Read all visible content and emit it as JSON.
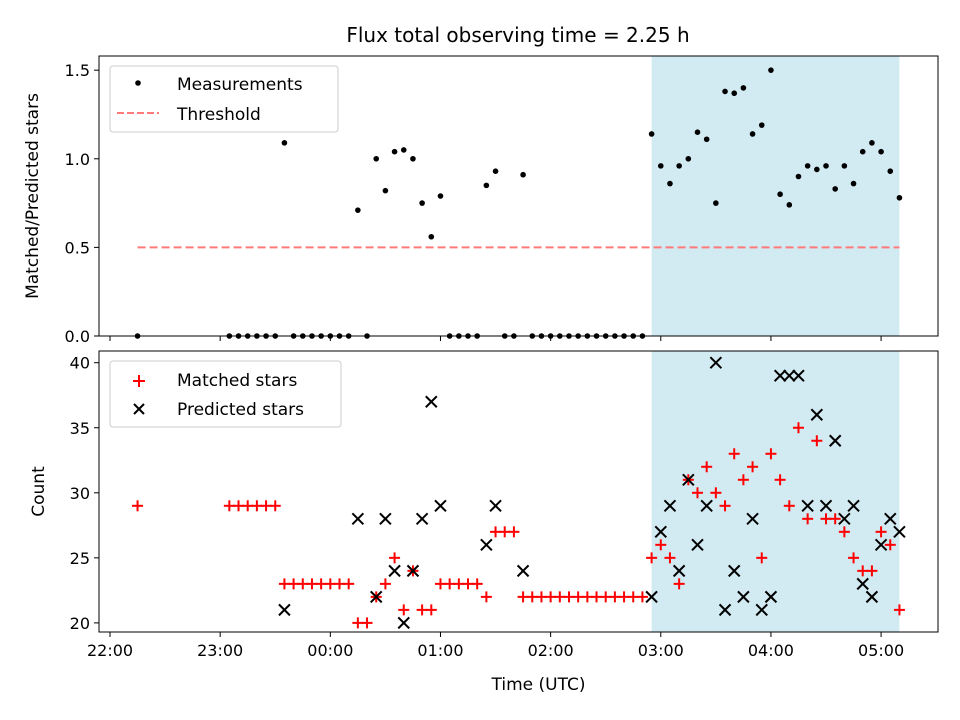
{
  "chart_data": [
    {
      "type": "scatter",
      "title": "Flux total observing time = 2.25 h",
      "xlabel": "",
      "ylabel": "Matched/Predicted stars",
      "ylim": [
        0,
        1.58
      ],
      "yticks": [
        0.0,
        0.5,
        1.0,
        1.5
      ],
      "ytick_labels": [
        "0.0",
        "0.5",
        "1.0",
        "1.5"
      ],
      "grid": false,
      "legend": "upper-left",
      "shaded_region": {
        "x": [
          "02:55",
          "05:10"
        ],
        "color": "#add8e6"
      },
      "series": [
        {
          "name": "Measurements",
          "color": "#000000",
          "marker": "dot",
          "points": [
            [
              "22:15",
              0
            ],
            [
              "23:05",
              0
            ],
            [
              "23:10",
              0
            ],
            [
              "23:15",
              0
            ],
            [
              "23:20",
              0
            ],
            [
              "23:25",
              0
            ],
            [
              "23:30",
              0
            ],
            [
              "23:35",
              1.09
            ],
            [
              "23:40",
              0
            ],
            [
              "23:45",
              0
            ],
            [
              "23:50",
              0
            ],
            [
              "23:55",
              0
            ],
            [
              "00:00",
              0
            ],
            [
              "00:05",
              0
            ],
            [
              "00:10",
              0
            ],
            [
              "00:15",
              0.71
            ],
            [
              "00:20",
              0
            ],
            [
              "00:25",
              1.0
            ],
            [
              "00:30",
              0.82
            ],
            [
              "00:35",
              1.04
            ],
            [
              "00:40",
              1.05
            ],
            [
              "00:45",
              1.0
            ],
            [
              "00:50",
              0.75
            ],
            [
              "00:55",
              0.56
            ],
            [
              "01:00",
              0.79
            ],
            [
              "01:05",
              0
            ],
            [
              "01:10",
              0
            ],
            [
              "01:15",
              0
            ],
            [
              "01:20",
              0
            ],
            [
              "01:25",
              0.85
            ],
            [
              "01:30",
              0.93
            ],
            [
              "01:35",
              0
            ],
            [
              "01:40",
              0
            ],
            [
              "01:45",
              0.91
            ],
            [
              "01:50",
              0
            ],
            [
              "01:55",
              0
            ],
            [
              "02:00",
              0
            ],
            [
              "02:05",
              0
            ],
            [
              "02:10",
              0
            ],
            [
              "02:15",
              0
            ],
            [
              "02:20",
              0
            ],
            [
              "02:25",
              0
            ],
            [
              "02:30",
              0
            ],
            [
              "02:35",
              0
            ],
            [
              "02:40",
              0
            ],
            [
              "02:45",
              0
            ],
            [
              "02:50",
              0
            ],
            [
              "02:55",
              1.14
            ],
            [
              "03:00",
              0.96
            ],
            [
              "03:05",
              0.86
            ],
            [
              "03:10",
              0.96
            ],
            [
              "03:15",
              1.0
            ],
            [
              "03:20",
              1.15
            ],
            [
              "03:25",
              1.11
            ],
            [
              "03:30",
              0.75
            ],
            [
              "03:35",
              1.38
            ],
            [
              "03:40",
              1.37
            ],
            [
              "03:45",
              1.4
            ],
            [
              "03:50",
              1.14
            ],
            [
              "03:55",
              1.19
            ],
            [
              "04:00",
              1.5
            ],
            [
              "04:05",
              0.8
            ],
            [
              "04:10",
              0.74
            ],
            [
              "04:15",
              0.9
            ],
            [
              "04:20",
              0.96
            ],
            [
              "04:25",
              0.94
            ],
            [
              "04:30",
              0.96
            ],
            [
              "04:35",
              0.83
            ],
            [
              "04:40",
              0.96
            ],
            [
              "04:45",
              0.86
            ],
            [
              "04:50",
              1.04
            ],
            [
              "04:55",
              1.09
            ],
            [
              "05:00",
              1.04
            ],
            [
              "05:05",
              0.93
            ],
            [
              "05:10",
              0.78
            ]
          ]
        },
        {
          "name": "Threshold",
          "color": "#ff7a7a",
          "marker": "dashed-line",
          "points": [
            [
              "22:15",
              0.5
            ],
            [
              "05:10",
              0.5
            ]
          ]
        }
      ]
    },
    {
      "type": "scatter",
      "title": "",
      "xlabel": "Time (UTC)",
      "ylabel": "Count",
      "ylim": [
        19.3,
        40.9
      ],
      "yticks": [
        20,
        25,
        30,
        35,
        40
      ],
      "ytick_labels": [
        "20",
        "25",
        "30",
        "35",
        "40"
      ],
      "xticks": [
        "22:00",
        "23:00",
        "00:00",
        "01:00",
        "02:00",
        "03:00",
        "04:00",
        "05:00"
      ],
      "xlim": [
        "21:54",
        "05:31"
      ],
      "grid": false,
      "legend": "upper-left",
      "shaded_region": {
        "x": [
          "02:55",
          "05:10"
        ],
        "color": "#add8e6"
      },
      "series": [
        {
          "name": "Matched stars",
          "color": "#ff0000",
          "marker": "plus",
          "points": [
            [
              "22:15",
              29
            ],
            [
              "23:05",
              29
            ],
            [
              "23:10",
              29
            ],
            [
              "23:15",
              29
            ],
            [
              "23:20",
              29
            ],
            [
              "23:25",
              29
            ],
            [
              "23:30",
              29
            ],
            [
              "23:35",
              23
            ],
            [
              "23:40",
              23
            ],
            [
              "23:45",
              23
            ],
            [
              "23:50",
              23
            ],
            [
              "23:55",
              23
            ],
            [
              "00:00",
              23
            ],
            [
              "00:05",
              23
            ],
            [
              "00:10",
              23
            ],
            [
              "00:15",
              20
            ],
            [
              "00:20",
              20
            ],
            [
              "00:25",
              22
            ],
            [
              "00:30",
              23
            ],
            [
              "00:35",
              25
            ],
            [
              "00:40",
              21
            ],
            [
              "00:45",
              24
            ],
            [
              "00:50",
              21
            ],
            [
              "00:55",
              21
            ],
            [
              "01:00",
              23
            ],
            [
              "01:05",
              23
            ],
            [
              "01:10",
              23
            ],
            [
              "01:15",
              23
            ],
            [
              "01:20",
              23
            ],
            [
              "01:25",
              22
            ],
            [
              "01:30",
              27
            ],
            [
              "01:35",
              27
            ],
            [
              "01:40",
              27
            ],
            [
              "01:45",
              22
            ],
            [
              "01:50",
              22
            ],
            [
              "01:55",
              22
            ],
            [
              "02:00",
              22
            ],
            [
              "02:05",
              22
            ],
            [
              "02:10",
              22
            ],
            [
              "02:15",
              22
            ],
            [
              "02:20",
              22
            ],
            [
              "02:25",
              22
            ],
            [
              "02:30",
              22
            ],
            [
              "02:35",
              22
            ],
            [
              "02:40",
              22
            ],
            [
              "02:45",
              22
            ],
            [
              "02:50",
              22
            ],
            [
              "02:55",
              25
            ],
            [
              "03:00",
              26
            ],
            [
              "03:05",
              25
            ],
            [
              "03:10",
              23
            ],
            [
              "03:15",
              31
            ],
            [
              "03:20",
              30
            ],
            [
              "03:25",
              32
            ],
            [
              "03:30",
              30
            ],
            [
              "03:35",
              29
            ],
            [
              "03:40",
              33
            ],
            [
              "03:45",
              31
            ],
            [
              "03:50",
              32
            ],
            [
              "03:55",
              25
            ],
            [
              "04:00",
              33
            ],
            [
              "04:05",
              31
            ],
            [
              "04:10",
              29
            ],
            [
              "04:15",
              35
            ],
            [
              "04:20",
              28
            ],
            [
              "04:25",
              34
            ],
            [
              "04:30",
              28
            ],
            [
              "04:35",
              28
            ],
            [
              "04:40",
              27
            ],
            [
              "04:45",
              25
            ],
            [
              "04:50",
              24
            ],
            [
              "04:55",
              24
            ],
            [
              "05:00",
              27
            ],
            [
              "05:05",
              26
            ],
            [
              "05:10",
              21
            ]
          ]
        },
        {
          "name": "Predicted stars",
          "color": "#000000",
          "marker": "x",
          "points": [
            [
              "23:35",
              21
            ],
            [
              "00:15",
              28
            ],
            [
              "00:25",
              22
            ],
            [
              "00:30",
              28
            ],
            [
              "00:35",
              24
            ],
            [
              "00:40",
              20
            ],
            [
              "00:45",
              24
            ],
            [
              "00:50",
              28
            ],
            [
              "00:55",
              37
            ],
            [
              "01:00",
              29
            ],
            [
              "01:25",
              26
            ],
            [
              "01:30",
              29
            ],
            [
              "01:45",
              24
            ],
            [
              "02:55",
              22
            ],
            [
              "03:00",
              27
            ],
            [
              "03:05",
              29
            ],
            [
              "03:10",
              24
            ],
            [
              "03:15",
              31
            ],
            [
              "03:20",
              26
            ],
            [
              "03:25",
              29
            ],
            [
              "03:30",
              40
            ],
            [
              "03:35",
              21
            ],
            [
              "03:40",
              24
            ],
            [
              "03:45",
              22
            ],
            [
              "03:50",
              28
            ],
            [
              "03:55",
              21
            ],
            [
              "04:00",
              22
            ],
            [
              "04:05",
              39
            ],
            [
              "04:10",
              39
            ],
            [
              "04:15",
              39
            ],
            [
              "04:25",
              36
            ],
            [
              "04:20",
              29
            ],
            [
              "04:30",
              29
            ],
            [
              "04:35",
              34
            ],
            [
              "04:40",
              28
            ],
            [
              "04:45",
              29
            ],
            [
              "04:50",
              23
            ],
            [
              "04:55",
              22
            ],
            [
              "05:00",
              26
            ],
            [
              "05:05",
              28
            ],
            [
              "05:10",
              27
            ]
          ]
        }
      ]
    }
  ]
}
